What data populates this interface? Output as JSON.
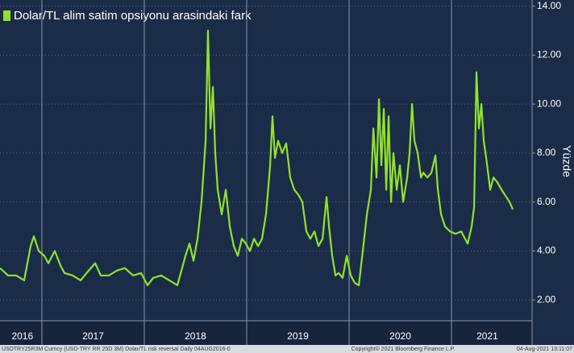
{
  "chart_data": {
    "type": "line",
    "y_label": "Yüzde",
    "x": [
      2016.591,
      2016.67,
      2016.748,
      2016.827,
      2016.89,
      2016.922,
      2016.969,
      2017.024,
      2017.063,
      2017.126,
      2017.182,
      2017.221,
      2017.3,
      2017.378,
      2017.457,
      2017.52,
      2017.575,
      2017.654,
      2017.733,
      2017.811,
      2017.89,
      2017.969,
      2018.032,
      2018.087,
      2018.166,
      2018.244,
      2018.323,
      2018.363,
      2018.402,
      2018.441,
      2018.481,
      2018.52,
      2018.559,
      2018.599,
      2018.622,
      2018.646,
      2018.67,
      2018.693,
      2018.717,
      2018.756,
      2018.796,
      2018.835,
      2018.874,
      2018.913,
      2018.953,
      2018.992,
      2019.032,
      2019.071,
      2019.111,
      2019.15,
      2019.189,
      2019.229,
      2019.252,
      2019.276,
      2019.307,
      2019.347,
      2019.386,
      2019.425,
      2019.465,
      2019.504,
      2019.544,
      2019.583,
      2019.622,
      2019.662,
      2019.701,
      2019.741,
      2019.78,
      2019.804,
      2019.835,
      2019.867,
      2019.898,
      2019.937,
      2019.977,
      2020.016,
      2020.055,
      2020.095,
      2020.134,
      2020.174,
      2020.213,
      2020.237,
      2020.268,
      2020.292,
      2020.315,
      2020.339,
      2020.363,
      2020.386,
      2020.41,
      2020.433,
      2020.465,
      2020.496,
      2020.528,
      2020.567,
      2020.591,
      2020.615,
      2020.638,
      2020.67,
      2020.702,
      2020.725,
      2020.765,
      2020.804,
      2020.843,
      2020.867,
      2020.898,
      2020.937,
      2020.985,
      2021.04,
      2021.095,
      2021.158,
      2021.197,
      2021.221,
      2021.244,
      2021.268,
      2021.292,
      2021.315,
      2021.339,
      2021.378,
      2021.41,
      2021.449,
      2021.489,
      2021.536,
      2021.567,
      2021.599
    ],
    "series": [
      {
        "name": "Dolar/TL alim satim opsiyonu arasindaki fark",
        "color": "#93e12e",
        "values": [
          3.3,
          3.0,
          3.0,
          2.8,
          4.2,
          4.6,
          4.0,
          3.8,
          3.5,
          4.0,
          3.4,
          3.1,
          3.0,
          2.8,
          3.2,
          3.5,
          3.0,
          3.0,
          3.2,
          3.3,
          3.0,
          3.1,
          2.6,
          2.9,
          3.0,
          2.8,
          2.6,
          3.2,
          3.8,
          4.3,
          3.6,
          4.5,
          6.0,
          8.5,
          13.0,
          9.0,
          10.7,
          8.0,
          6.5,
          5.5,
          6.5,
          5.0,
          4.2,
          3.8,
          4.5,
          4.3,
          4.0,
          4.5,
          4.2,
          4.5,
          5.5,
          7.5,
          9.5,
          7.8,
          8.5,
          8.0,
          8.4,
          7.0,
          6.5,
          6.3,
          6.0,
          4.8,
          4.5,
          4.8,
          4.2,
          4.5,
          6.2,
          5.0,
          3.8,
          3.0,
          3.1,
          2.9,
          3.8,
          3.0,
          2.7,
          2.6,
          4.0,
          5.5,
          6.5,
          9.0,
          7.0,
          10.2,
          7.5,
          9.8,
          6.5,
          9.5,
          6.0,
          8.0,
          6.5,
          7.5,
          6.0,
          7.0,
          8.0,
          10.0,
          8.5,
          8.0,
          7.0,
          7.2,
          7.0,
          7.2,
          7.9,
          6.5,
          5.5,
          5.0,
          4.8,
          4.7,
          4.8,
          4.3,
          5.0,
          5.8,
          11.3,
          9.0,
          10.0,
          8.5,
          7.8,
          6.5,
          7.0,
          6.8,
          6.5,
          6.2,
          6.0,
          5.7
        ]
      }
    ],
    "xlim": [
      2016.591,
      2021.787
    ],
    "xticks": [
      {
        "value": 2016.81,
        "label": "2016"
      },
      {
        "value": 2017.5,
        "label": "2017"
      },
      {
        "value": 2018.5,
        "label": "2018"
      },
      {
        "value": 2019.5,
        "label": "2019"
      },
      {
        "value": 2020.5,
        "label": "2020"
      },
      {
        "value": 2021.35,
        "label": "2021"
      }
    ],
    "xgrid": [
      2017,
      2018,
      2019,
      2020,
      2021
    ],
    "ylim": [
      1.15,
      14.25
    ],
    "yticks": [
      {
        "value": 2,
        "label": "2.00"
      },
      {
        "value": 4,
        "label": "4.00"
      },
      {
        "value": 6,
        "label": "6.00"
      },
      {
        "value": 8,
        "label": "8.00"
      },
      {
        "value": 10,
        "label": "10.00"
      },
      {
        "value": 12,
        "label": "12.00"
      },
      {
        "value": 14,
        "label": "14.00"
      }
    ],
    "grid": true
  },
  "footer": {
    "left": "USDTRY25R3M Curncy (USD-TRY RR 25D 3M) Dolar/TL risk reversal  Daily 04AUG2016-0",
    "center": "Copyright© 2021 Bloomberg Finance L.P.",
    "right": "04-Aug-2021 13:11:07"
  }
}
